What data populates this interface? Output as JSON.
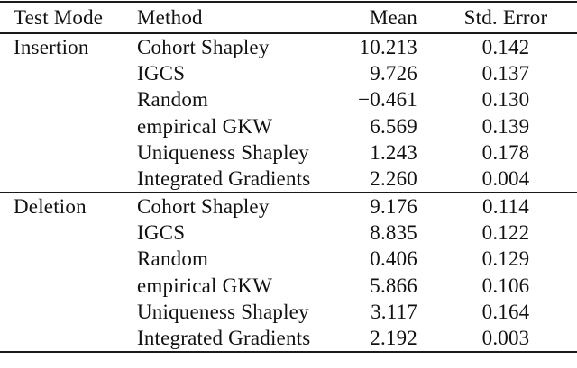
{
  "table": {
    "columns": {
      "test_mode": "Test Mode",
      "method": "Method",
      "mean": "Mean",
      "std_error": "Std. Error"
    },
    "sections": [
      {
        "test_mode": "Insertion",
        "rows": [
          {
            "method": "Cohort Shapley",
            "mean": "10.213",
            "std_error": "0.142"
          },
          {
            "method": "IGCS",
            "mean": "9.726",
            "std_error": "0.137"
          },
          {
            "method": "Random",
            "mean": "−0.461",
            "std_error": "0.130"
          },
          {
            "method": "empirical GKW",
            "mean": "6.569",
            "std_error": "0.139"
          },
          {
            "method": "Uniqueness Shapley",
            "mean": "1.243",
            "std_error": "0.178"
          },
          {
            "method": "Integrated Gradients",
            "mean": "2.260",
            "std_error": "0.004"
          }
        ]
      },
      {
        "test_mode": "Deletion",
        "rows": [
          {
            "method": "Cohort Shapley",
            "mean": "9.176",
            "std_error": "0.114"
          },
          {
            "method": "IGCS",
            "mean": "8.835",
            "std_error": "0.122"
          },
          {
            "method": "Random",
            "mean": "0.406",
            "std_error": "0.129"
          },
          {
            "method": "empirical GKW",
            "mean": "5.866",
            "std_error": "0.106"
          },
          {
            "method": "Uniqueness Shapley",
            "mean": "3.117",
            "std_error": "0.164"
          },
          {
            "method": "Integrated Gradients",
            "mean": "2.192",
            "std_error": "0.003"
          }
        ]
      }
    ]
  },
  "colors": {
    "background": "#ffffff",
    "text": "#111111",
    "rule": "#1a1a1a"
  },
  "chart_data": {
    "type": "table",
    "title": "",
    "columns": [
      "Test Mode",
      "Method",
      "Mean",
      "Std. Error"
    ],
    "rows": [
      [
        "Insertion",
        "Cohort Shapley",
        10.213,
        0.142
      ],
      [
        "Insertion",
        "IGCS",
        9.726,
        0.137
      ],
      [
        "Insertion",
        "Random",
        -0.461,
        0.13
      ],
      [
        "Insertion",
        "empirical GKW",
        6.569,
        0.139
      ],
      [
        "Insertion",
        "Uniqueness Shapley",
        1.243,
        0.178
      ],
      [
        "Insertion",
        "Integrated Gradients",
        2.26,
        0.004
      ],
      [
        "Deletion",
        "Cohort Shapley",
        9.176,
        0.114
      ],
      [
        "Deletion",
        "IGCS",
        8.835,
        0.122
      ],
      [
        "Deletion",
        "Random",
        0.406,
        0.129
      ],
      [
        "Deletion",
        "empirical GKW",
        5.866,
        0.106
      ],
      [
        "Deletion",
        "Uniqueness Shapley",
        3.117,
        0.164
      ],
      [
        "Deletion",
        "Integrated Gradients",
        2.192,
        0.003
      ]
    ]
  }
}
